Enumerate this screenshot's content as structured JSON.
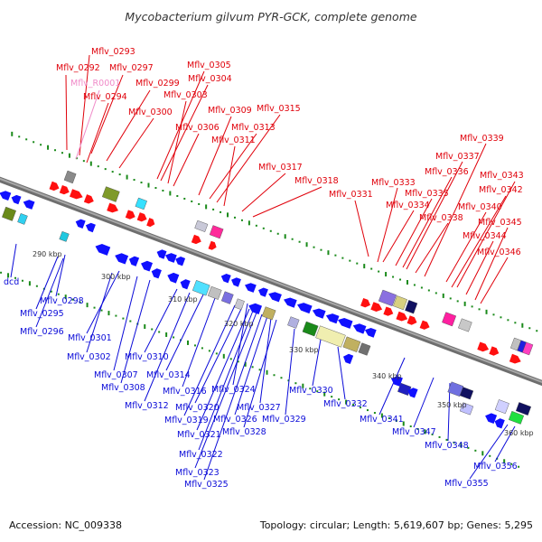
{
  "title": "Mycobacterium gilvum PYR-GCK, complete genome",
  "footer": {
    "accession": "Accession: NC_009338",
    "summary": "Topology: circular; Length: 5,619,607 bp; Genes: 5,295"
  },
  "colors": {
    "forward_label": "#e0000a",
    "reverse_label": "#0a0ad8",
    "rna_label": "#f08ac8",
    "forward_gene": "#ff1010",
    "reverse_gene": "#1010ff",
    "backbone": "#8a8a8a",
    "gc_dots": "#1a8a1a"
  },
  "kbp_ticks": [
    "290 kbp",
    "300 kbp",
    "310 kbp",
    "320 kbp",
    "330 kbp",
    "340 kbp",
    "350 kbp",
    "360 kbp"
  ],
  "forward_labels": [
    {
      "text": "Mflv_0293",
      "color": "#e0000a"
    },
    {
      "text": "Mflv_0292",
      "color": "#e0000a"
    },
    {
      "text": "Mflv_0297",
      "color": "#e0000a"
    },
    {
      "text": "Mflv_R0001",
      "color": "#f08ac8"
    },
    {
      "text": "Mflv_0299",
      "color": "#e0000a"
    },
    {
      "text": "Mflv_0294",
      "color": "#e0000a"
    },
    {
      "text": "Mflv_0300",
      "color": "#e0000a"
    },
    {
      "text": "Mflv_0305",
      "color": "#e0000a"
    },
    {
      "text": "Mflv_0304",
      "color": "#e0000a"
    },
    {
      "text": "Mflv_0303",
      "color": "#e0000a"
    },
    {
      "text": "Mflv_0306",
      "color": "#e0000a"
    },
    {
      "text": "Mflv_0309",
      "color": "#e0000a"
    },
    {
      "text": "Mflv_0313",
      "color": "#e0000a"
    },
    {
      "text": "Mflv_0315",
      "color": "#e0000a"
    },
    {
      "text": "Mflv_0311",
      "color": "#e0000a"
    },
    {
      "text": "Mflv_0317",
      "color": "#e0000a"
    },
    {
      "text": "Mflv_0318",
      "color": "#e0000a"
    },
    {
      "text": "Mflv_0331",
      "color": "#e0000a"
    },
    {
      "text": "Mflv_0333",
      "color": "#e0000a"
    },
    {
      "text": "Mflv_0334",
      "color": "#e0000a"
    },
    {
      "text": "Mflv_0335",
      "color": "#e0000a"
    },
    {
      "text": "Mflv_0336",
      "color": "#e0000a"
    },
    {
      "text": "Mflv_0337",
      "color": "#e0000a"
    },
    {
      "text": "Mflv_0338",
      "color": "#e0000a"
    },
    {
      "text": "Mflv_0339",
      "color": "#e0000a"
    },
    {
      "text": "Mflv_0340",
      "color": "#e0000a"
    },
    {
      "text": "Mflv_0342",
      "color": "#e0000a"
    },
    {
      "text": "Mflv_0343",
      "color": "#e0000a"
    },
    {
      "text": "Mflv_0344",
      "color": "#e0000a"
    },
    {
      "text": "Mflv_0345",
      "color": "#e0000a"
    },
    {
      "text": "Mflv_0346",
      "color": "#e0000a"
    }
  ],
  "reverse_labels": [
    "dcd",
    "Mflv_0298",
    "Mflv_0295",
    "Mflv_0296",
    "Mflv_0301",
    "Mflv_0302",
    "Mflv_0307",
    "Mflv_0308",
    "Mflv_0310",
    "Mflv_0312",
    "Mflv_0314",
    "Mflv_0316",
    "Mflv_0319",
    "Mflv_0320",
    "Mflv_0321",
    "Mflv_0322",
    "Mflv_0323",
    "Mflv_0325",
    "Mflv_0324",
    "Mflv_0326",
    "Mflv_0327",
    "Mflv_0328",
    "Mflv_0329",
    "Mflv_0330",
    "Mflv_0332",
    "Mflv_0341",
    "Mflv_0347",
    "Mflv_0348",
    "Mflv_0355",
    "Mflv_0356"
  ]
}
